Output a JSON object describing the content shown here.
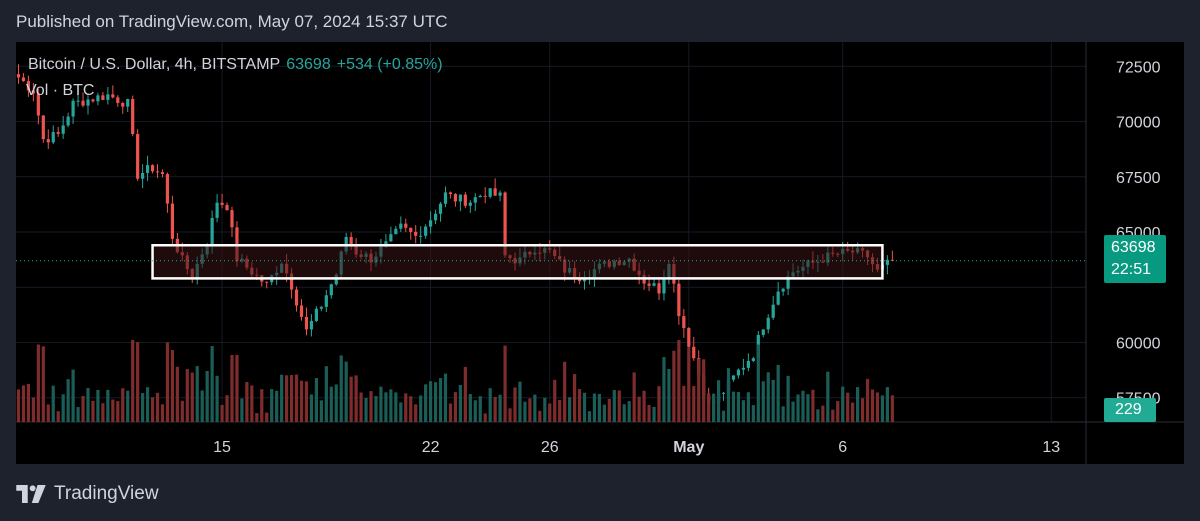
{
  "published": "Published on TradingView.com, May 07, 2024 15:37 UTC",
  "legend": {
    "symbol": "Bitcoin / U.S. Dollar, 4h, BITSTAMP",
    "last": "63698",
    "change": "+534 (+0.85%)",
    "volume_label": "Vol · BTC"
  },
  "badges": {
    "price": "63698",
    "countdown": "22:51",
    "volume": "229"
  },
  "footer": {
    "brand": "TradingView"
  },
  "colors": {
    "up": "#26a69a",
    "down": "#ef5350",
    "up_volume": "#1b5e57",
    "down_volume": "#7f2c2c",
    "zone_fill": "#3a1416",
    "zone_border": "#ffffff"
  },
  "chart_data": {
    "type": "candlestick",
    "title": "Bitcoin / U.S. Dollar, 4h, BITSTAMP",
    "y_ticks": [
      57500,
      60000,
      62500,
      65000,
      67500,
      70000,
      72500
    ],
    "y_tick_labels": [
      "57500",
      "60000",
      "",
      "65000",
      "67500",
      "70000",
      "72500"
    ],
    "ylim": [
      56400,
      73600
    ],
    "x_ticks": [
      {
        "label": "15",
        "t": 41
      },
      {
        "label": "22",
        "t": 83
      },
      {
        "label": "26",
        "t": 107
      },
      {
        "label": "May",
        "t": 135,
        "bold": true
      },
      {
        "label": "6",
        "t": 166
      },
      {
        "label": "13",
        "t": 208
      }
    ],
    "xlim": [
      -0.5,
      215
    ],
    "last_price": 63698,
    "zone": {
      "t_start": 27,
      "t_end": 174,
      "low": 62900,
      "high": 64400
    },
    "anchors": [
      [
        0,
        72000
      ],
      [
        3,
        71400
      ],
      [
        5,
        69200
      ],
      [
        8,
        69400
      ],
      [
        11,
        70800
      ],
      [
        14,
        71000
      ],
      [
        18,
        71200
      ],
      [
        22,
        70800
      ],
      [
        24,
        67600
      ],
      [
        27,
        67900
      ],
      [
        29,
        67600
      ],
      [
        31,
        64800
      ],
      [
        33,
        63700
      ],
      [
        35,
        63000
      ],
      [
        38,
        64600
      ],
      [
        40,
        66400
      ],
      [
        42,
        66200
      ],
      [
        44,
        63800
      ],
      [
        47,
        63200
      ],
      [
        50,
        62600
      ],
      [
        53,
        63700
      ],
      [
        55,
        62600
      ],
      [
        58,
        60500
      ],
      [
        61,
        61700
      ],
      [
        64,
        63100
      ],
      [
        66,
        64800
      ],
      [
        68,
        64100
      ],
      [
        71,
        63800
      ],
      [
        74,
        64400
      ],
      [
        77,
        65200
      ],
      [
        80,
        64800
      ],
      [
        83,
        65600
      ],
      [
        86,
        66700
      ],
      [
        88,
        66500
      ],
      [
        91,
        66400
      ],
      [
        94,
        66800
      ],
      [
        97,
        66600
      ],
      [
        98,
        63900
      ],
      [
        101,
        63700
      ],
      [
        104,
        64300
      ],
      [
        107,
        64100
      ],
      [
        110,
        63300
      ],
      [
        113,
        63000
      ],
      [
        116,
        63300
      ],
      [
        120,
        63700
      ],
      [
        123,
        63800
      ],
      [
        126,
        62800
      ],
      [
        129,
        62400
      ],
      [
        131,
        63800
      ],
      [
        133,
        61400
      ],
      [
        136,
        59300
      ],
      [
        139,
        57100
      ],
      [
        142,
        57800
      ],
      [
        145,
        58700
      ],
      [
        148,
        59500
      ],
      [
        150,
        60800
      ],
      [
        153,
        62400
      ],
      [
        156,
        63200
      ],
      [
        159,
        63500
      ],
      [
        162,
        63800
      ],
      [
        165,
        64000
      ],
      [
        168,
        64100
      ],
      [
        171,
        63900
      ],
      [
        173,
        63200
      ],
      [
        176,
        63700
      ]
    ]
  }
}
